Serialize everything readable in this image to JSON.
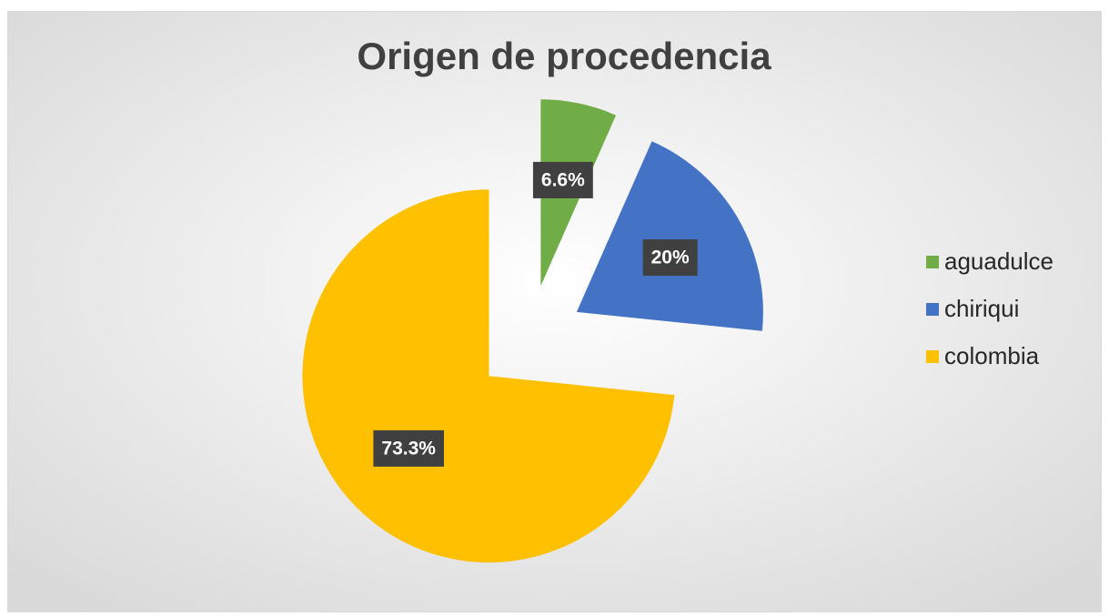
{
  "chart_data": {
    "type": "pie",
    "title": "Origen de procedencia",
    "categories": [
      "aguadulce",
      "chiriqui",
      "colombia"
    ],
    "values": [
      6.6,
      20,
      73.3
    ],
    "value_labels": [
      "6.6%",
      "20%",
      "73.3%"
    ],
    "colors": [
      "#70ad47",
      "#4472c4",
      "#ffc000"
    ],
    "exploded": true,
    "legend": "right"
  }
}
